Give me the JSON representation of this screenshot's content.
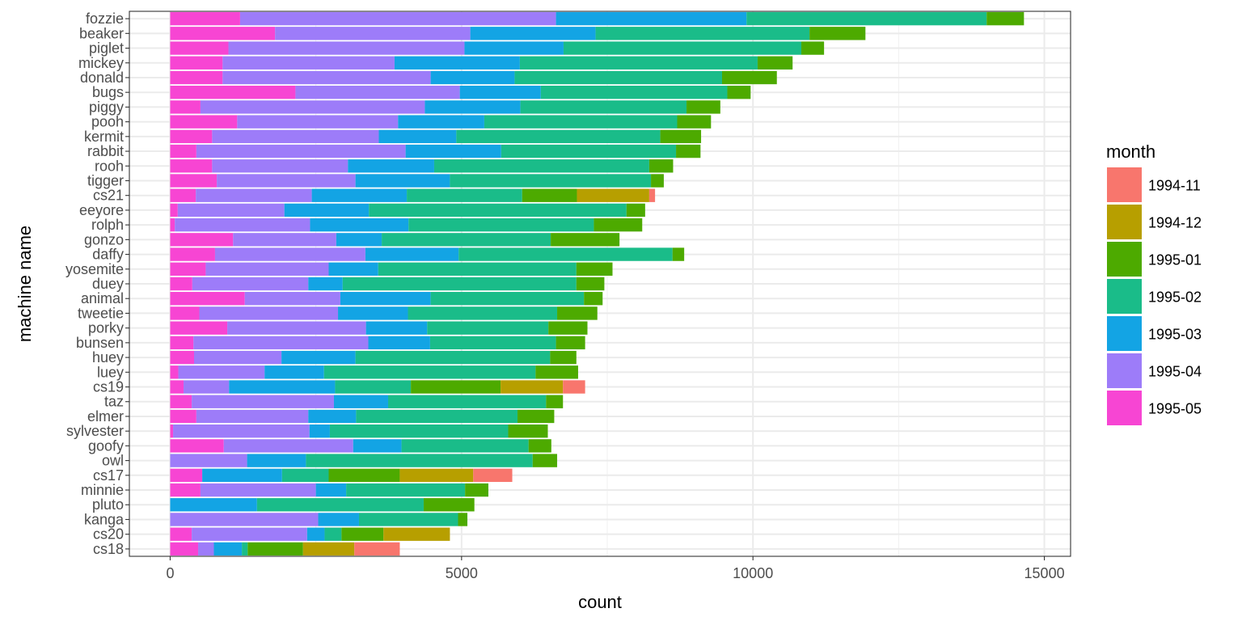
{
  "chart_data": {
    "type": "bar",
    "orientation": "horizontal",
    "stacked": true,
    "xlabel": "count",
    "ylabel": "machine name",
    "xlim": [
      -700,
      15450
    ],
    "xticks": [
      0,
      5000,
      10000,
      15000
    ],
    "xtick_labels": [
      "0",
      "5000",
      "10000",
      "15000"
    ],
    "legend": {
      "title": "month",
      "position": "right",
      "items": [
        {
          "label": "1994-11",
          "color": "#F8766D"
        },
        {
          "label": "1994-12",
          "color": "#B79F00"
        },
        {
          "label": "1995-01",
          "color": "#4DAA00"
        },
        {
          "label": "1995-02",
          "color": "#1ABC89"
        },
        {
          "label": "1995-03",
          "color": "#13A4E4"
        },
        {
          "label": "1995-04",
          "color": "#9D7CF9"
        },
        {
          "label": "1995-05",
          "color": "#F745D3"
        }
      ]
    },
    "series_order": [
      "1995-05",
      "1995-04",
      "1995-03",
      "1995-02",
      "1995-01",
      "1994-12",
      "1994-11"
    ],
    "categories": [
      "fozzie",
      "beaker",
      "piglet",
      "mickey",
      "donald",
      "bugs",
      "piggy",
      "pooh",
      "kermit",
      "rabbit",
      "rooh",
      "tigger",
      "cs21",
      "eeyore",
      "rolph",
      "gonzo",
      "daffy",
      "yosemite",
      "duey",
      "animal",
      "tweetie",
      "porky",
      "bunsen",
      "huey",
      "luey",
      "cs19",
      "taz",
      "elmer",
      "sylvester",
      "goofy",
      "owl",
      "cs17",
      "minnie",
      "pluto",
      "kanga",
      "cs20",
      "cs18"
    ],
    "series": [
      {
        "name": "1995-05",
        "values": [
          1200,
          1800,
          1000,
          900,
          900,
          2150,
          520,
          1150,
          720,
          450,
          720,
          800,
          440,
          130,
          80,
          1080,
          770,
          610,
          380,
          1280,
          500,
          980,
          400,
          410,
          140,
          230,
          370,
          450,
          50,
          920,
          0,
          550,
          520,
          0,
          0,
          370,
          480
        ]
      },
      {
        "name": "1995-04",
        "values": [
          5420,
          3350,
          4050,
          2950,
          3570,
          2820,
          3850,
          2760,
          2860,
          3590,
          2330,
          2380,
          1990,
          1830,
          2320,
          1770,
          2580,
          2110,
          1990,
          1640,
          2380,
          2380,
          3000,
          1500,
          1480,
          780,
          2440,
          1920,
          2340,
          2220,
          1320,
          0,
          1980,
          0,
          2540,
          1980,
          270
        ]
      },
      {
        "name": "1995-03",
        "values": [
          3270,
          2150,
          1700,
          2150,
          1440,
          1390,
          1640,
          1480,
          1330,
          1640,
          1480,
          1620,
          1630,
          1450,
          1690,
          780,
          1600,
          850,
          590,
          1550,
          1200,
          1050,
          1060,
          1270,
          1020,
          1820,
          930,
          820,
          350,
          830,
          1010,
          1370,
          520,
          1490,
          700,
          300,
          480
        ]
      },
      {
        "name": "1995-02",
        "values": [
          4120,
          3670,
          4080,
          4080,
          3560,
          3200,
          2850,
          3310,
          3500,
          3000,
          3690,
          3450,
          1980,
          4420,
          3180,
          2900,
          3670,
          3400,
          4010,
          2630,
          2560,
          2080,
          2160,
          3340,
          3630,
          1300,
          2710,
          2770,
          3060,
          2180,
          3890,
          800,
          2040,
          2860,
          1700,
          290,
          100
        ]
      },
      {
        "name": "1995-01",
        "values": [
          640,
          960,
          390,
          600,
          940,
          400,
          580,
          580,
          700,
          420,
          410,
          220,
          940,
          320,
          830,
          1180,
          200,
          620,
          480,
          320,
          690,
          670,
          500,
          450,
          730,
          1540,
          290,
          630,
          680,
          390,
          420,
          1220,
          400,
          870,
          160,
          720,
          950
        ]
      },
      {
        "name": "1994-12",
        "values": [
          0,
          0,
          0,
          0,
          0,
          0,
          0,
          0,
          0,
          0,
          0,
          0,
          1240,
          0,
          0,
          0,
          0,
          0,
          0,
          0,
          0,
          0,
          0,
          0,
          0,
          1070,
          0,
          0,
          0,
          0,
          0,
          1260,
          0,
          0,
          0,
          1140,
          880
        ]
      },
      {
        "name": "1994-11",
        "values": [
          0,
          0,
          0,
          0,
          0,
          0,
          0,
          0,
          0,
          0,
          0,
          0,
          100,
          0,
          0,
          0,
          0,
          0,
          0,
          0,
          0,
          0,
          0,
          0,
          0,
          380,
          0,
          0,
          0,
          0,
          0,
          670,
          0,
          0,
          0,
          0,
          780
        ]
      }
    ]
  }
}
